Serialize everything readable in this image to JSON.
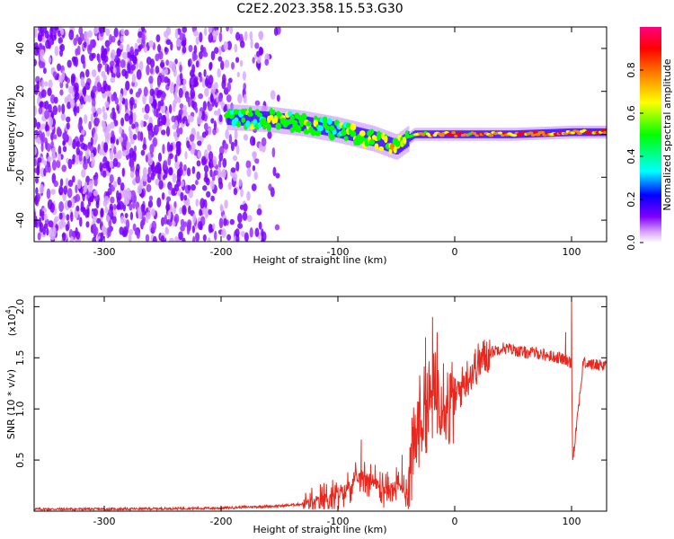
{
  "title": "C2E2.2023.358.15.53.G30",
  "chart_data": [
    {
      "type": "heatmap",
      "xlabel": "Height of straight line (km)",
      "ylabel": "Frequency (Hz)",
      "xlim": [
        -360,
        130
      ],
      "ylim": [
        -50,
        50
      ],
      "xticks": [
        -300,
        -200,
        -100,
        0,
        100
      ],
      "yticks": [
        40,
        20,
        0,
        -20,
        -40
      ],
      "ytick_labels": [
        "40",
        "20",
        "0",
        "-20",
        "-40"
      ],
      "colorbar": {
        "label": "Normalized spectral amplitude",
        "range": [
          0,
          1
        ],
        "ticks": [
          0.0,
          0.2,
          0.4,
          0.6,
          0.8
        ],
        "tick_labels": [
          "0.0",
          "0.2",
          "0.4",
          "0.6",
          "0.8"
        ],
        "colormap": [
          "#ffffff",
          "#d8a0ff",
          "#8000ff",
          "#0000ff",
          "#00ffff",
          "#00ff00",
          "#ffff00",
          "#ff8000",
          "#ff0000",
          "#ff0080"
        ]
      },
      "features": {
        "noise_region_x": [
          -360,
          -150
        ],
        "signal_ridge": {
          "x": [
            -195,
            -160,
            -130,
            -100,
            -70,
            -50,
            -35,
            -20,
            0,
            50,
            100,
            130
          ],
          "freq": [
            8,
            7,
            5,
            2,
            -2,
            -6,
            0,
            0,
            0,
            0,
            1,
            1
          ],
          "peak_amplitude": [
            0.5,
            0.55,
            0.55,
            0.5,
            0.6,
            0.7,
            0.6,
            0.9,
            0.9,
            0.8,
            0.95,
            0.85
          ]
        }
      }
    },
    {
      "type": "line",
      "xlabel": "Height of straight line (km)",
      "ylabel": "SNR (10 * v/v)",
      "y_scale_label": "(x10",
      "y_scale_exponent": "4",
      "y_scale_close": ")",
      "xlim": [
        -360,
        130
      ],
      "ylim": [
        0,
        2.1
      ],
      "xticks": [
        -300,
        -200,
        -100,
        0,
        100
      ],
      "yticks": [
        0.5,
        1.0,
        1.5,
        2.0
      ],
      "ytick_labels": [
        "0.5",
        "1.0",
        "1.5",
        "2.0"
      ],
      "color": "#e8281e",
      "series": [
        {
          "x": [
            -360,
            -300,
            -200,
            -180,
            -150,
            -120,
            -110,
            -100,
            -90,
            -80,
            -70,
            -60,
            -50,
            -40,
            -35,
            -30,
            -25,
            -20,
            -15,
            -10,
            -5,
            0,
            10,
            20,
            30,
            40,
            50,
            60,
            70,
            80,
            90,
            100,
            101,
            110,
            120,
            130
          ],
          "y": [
            0.02,
            0.02,
            0.03,
            0.04,
            0.05,
            0.08,
            0.12,
            0.15,
            0.25,
            0.35,
            0.3,
            0.2,
            0.25,
            0.2,
            0.6,
            0.9,
            1.0,
            1.1,
            1.15,
            1.2,
            1.0,
            1.1,
            1.3,
            1.45,
            1.55,
            1.6,
            1.58,
            1.55,
            1.55,
            1.52,
            1.5,
            1.45,
            0.5,
            1.45,
            1.43,
            1.44
          ]
        }
      ],
      "spikes": [
        {
          "x": -80,
          "y": 0.7
        },
        {
          "x": -45,
          "y": 0.55
        },
        {
          "x": -25,
          "y": 1.7
        },
        {
          "x": -19,
          "y": 1.9
        },
        {
          "x": -15,
          "y": 1.75
        },
        {
          "x": 100,
          "y": 2.1
        },
        {
          "x": 101,
          "y": 0.5
        },
        {
          "x": 95,
          "y": 1.75
        }
      ]
    }
  ]
}
